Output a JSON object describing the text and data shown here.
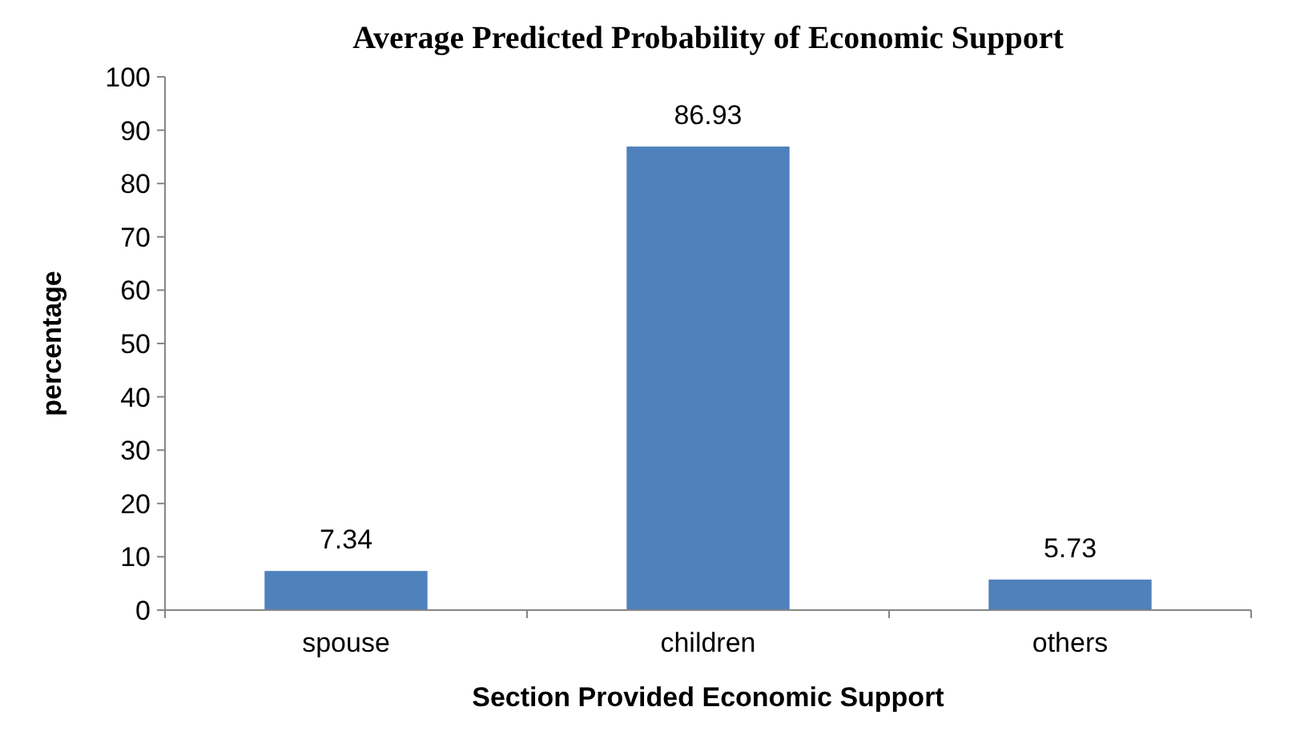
{
  "chart_data": {
    "type": "bar",
    "title": "Average Predicted Probability of Economic Support",
    "xlabel": "Section Provided Economic Support",
    "ylabel": "percentage",
    "categories": [
      "spouse",
      "children",
      "others"
    ],
    "values": [
      7.34,
      86.93,
      5.73
    ],
    "color": "#4f81bd",
    "ylim": [
      0,
      100
    ],
    "yticks": [
      0,
      10,
      20,
      30,
      40,
      50,
      60,
      70,
      80,
      90,
      100
    ],
    "grid": false,
    "data_labels": true
  }
}
